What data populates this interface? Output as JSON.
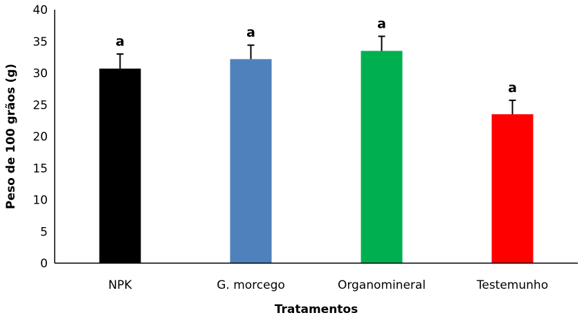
{
  "chart_data": {
    "type": "bar",
    "title": "",
    "xlabel": "Tratamentos",
    "ylabel": "Peso de 100 grãos (g)",
    "ylim": [
      0,
      40
    ],
    "yticks": [
      0,
      5,
      10,
      15,
      20,
      25,
      30,
      35,
      40
    ],
    "grid": false,
    "categories": [
      "NPK",
      "G. morcego",
      "Organomineral",
      "Testemunho"
    ],
    "values": [
      30.7,
      32.2,
      33.5,
      23.5
    ],
    "errors": [
      2.3,
      2.2,
      2.3,
      2.2
    ],
    "labels": [
      "a",
      "a",
      "a",
      "a"
    ],
    "colors": [
      "#000000",
      "#4f81bd",
      "#00b050",
      "#ff0000"
    ]
  }
}
